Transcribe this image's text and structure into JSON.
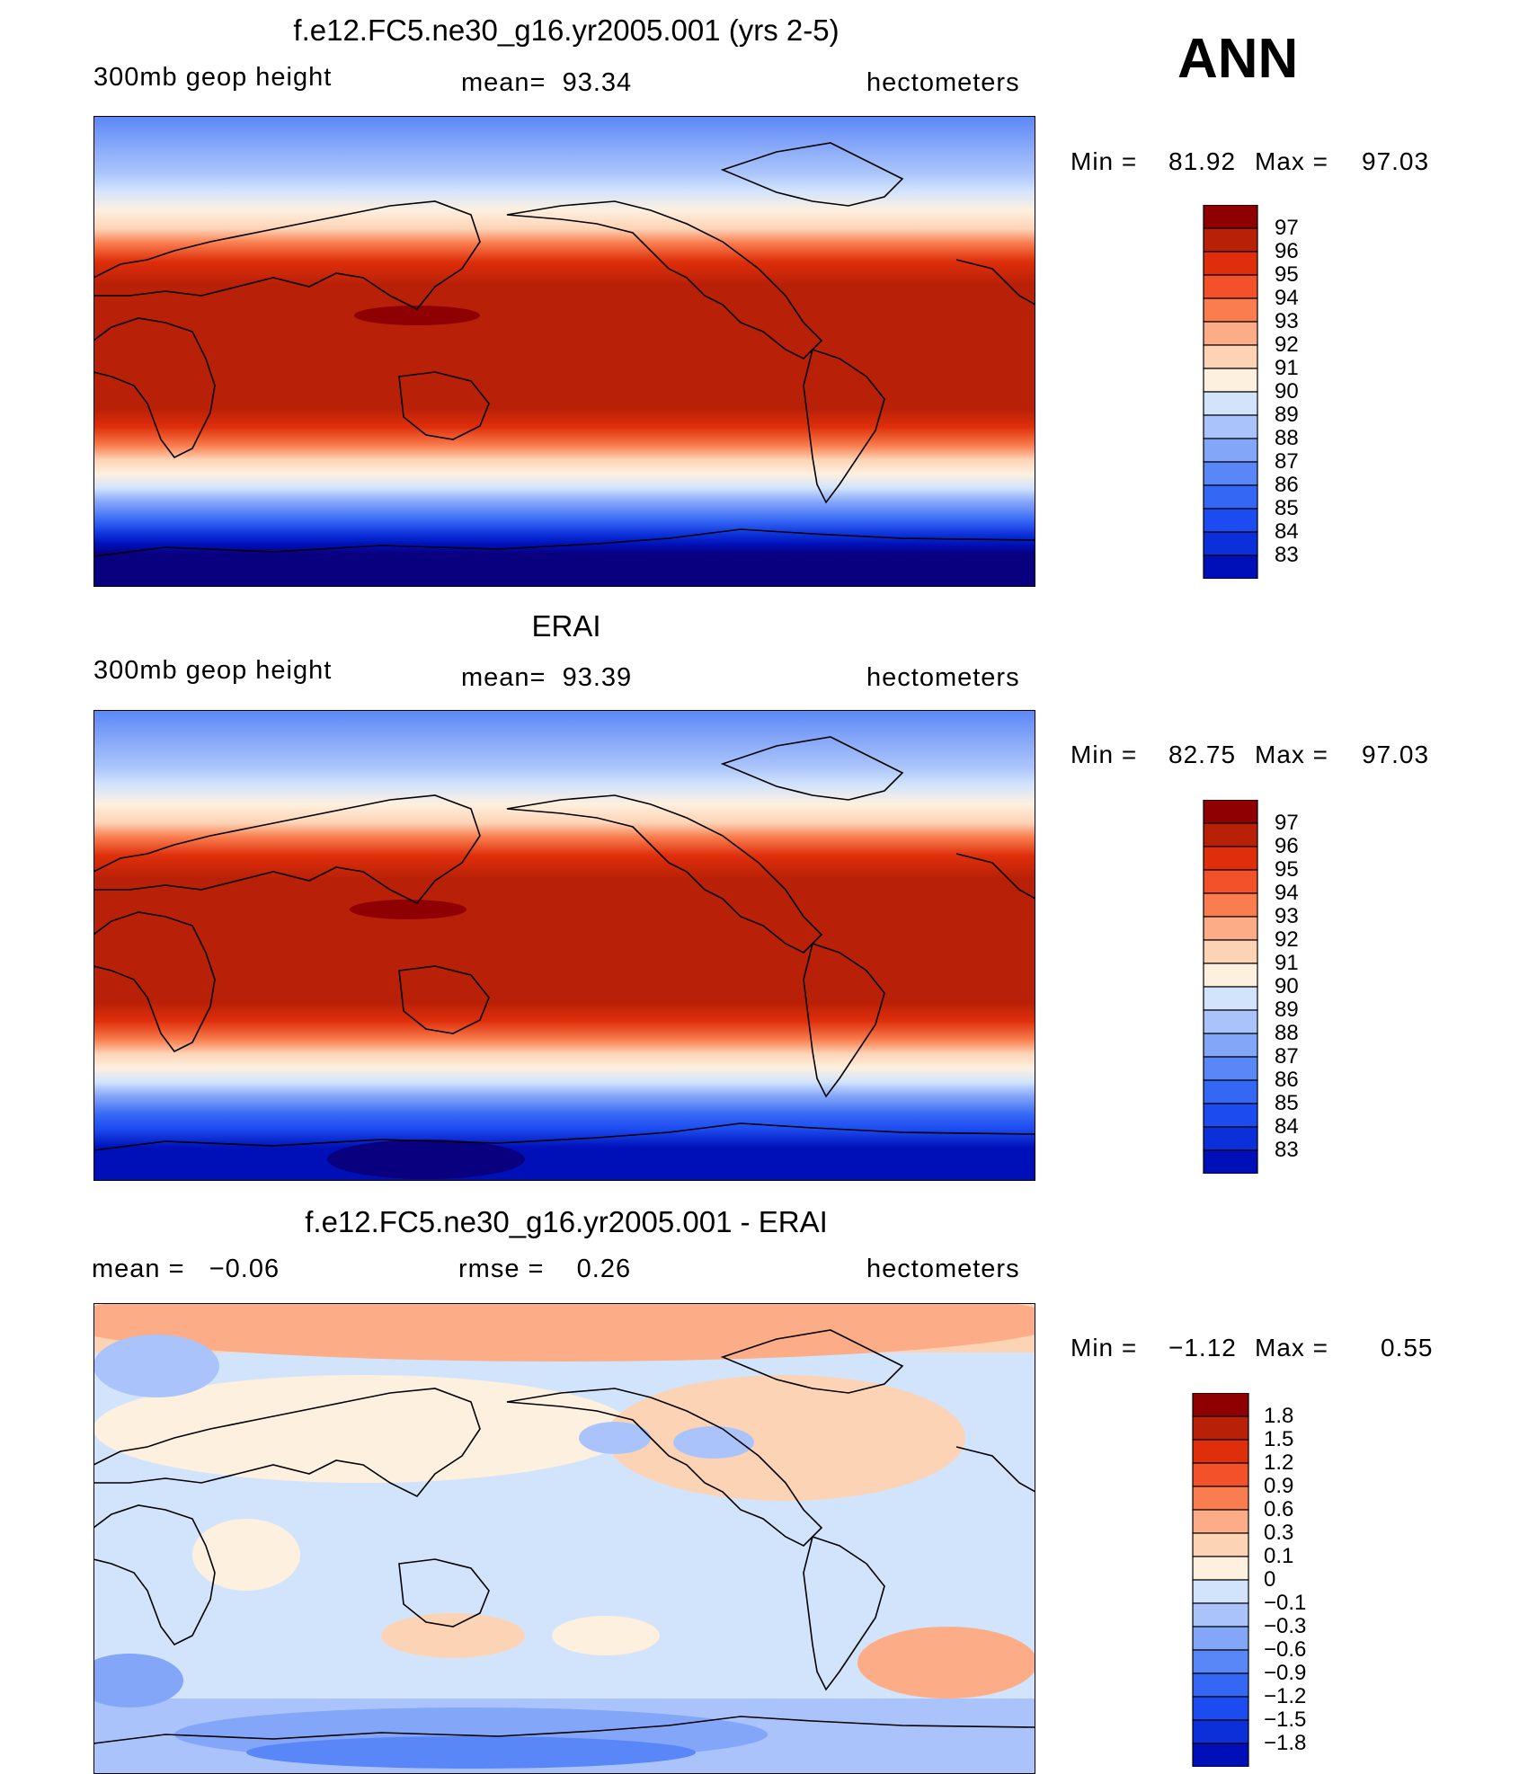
{
  "season": "ANN",
  "palette_abs": [
    "#08007f",
    "#0010b8",
    "#0b2fd8",
    "#1c4bf0",
    "#3567f5",
    "#5a87f7",
    "#84a6f9",
    "#aac4fb",
    "#d2e4fc",
    "#fdf0df",
    "#fdd3b6",
    "#fcad87",
    "#f97d4e",
    "#f2512a",
    "#de2e0b",
    "#b82007",
    "#8e0001"
  ],
  "palette_diff": [
    "#08007f",
    "#0010b8",
    "#0b2fd8",
    "#1c4bf0",
    "#3567f5",
    "#5a87f7",
    "#84a6f9",
    "#aac4fb",
    "#d2e4fc",
    "#fdf0df",
    "#fdd3b6",
    "#fcad87",
    "#f97d4e",
    "#f2512a",
    "#de2e0b",
    "#b82007",
    "#8e0001"
  ],
  "panels": [
    {
      "title": "f.e12.FC5.ne30_g16.yr2005.001 (yrs 2-5)",
      "left_label": "300mb geop height",
      "center_label": "mean=  93.34",
      "right_label": "hectometers",
      "min_label": "Min =",
      "min_value": "81.92",
      "max_label": "Max =",
      "max_value": "97.03",
      "colorbar_labels": [
        "97",
        "96",
        "95",
        "94",
        "93",
        "92",
        "91",
        "90",
        "89",
        "88",
        "87",
        "86",
        "85",
        "84",
        "83"
      ]
    },
    {
      "title": "ERAI",
      "left_label": "300mb geop height",
      "center_label": "mean=  93.39",
      "right_label": "hectometers",
      "min_label": "Min =",
      "min_value": "82.75",
      "max_label": "Max =",
      "max_value": "97.03",
      "colorbar_labels": [
        "97",
        "96",
        "95",
        "94",
        "93",
        "92",
        "91",
        "90",
        "89",
        "88",
        "87",
        "86",
        "85",
        "84",
        "83"
      ]
    },
    {
      "title": "f.e12.FC5.ne30_g16.yr2005.001 - ERAI",
      "left_label": "mean =   −0.06",
      "center_label": "rmse =    0.26",
      "right_label": "hectometers",
      "min_label": "Min =",
      "min_value": "−1.12",
      "max_label": "Max =",
      "max_value": "0.55",
      "colorbar_labels": [
        "1.8",
        "1.5",
        "1.2",
        "0.9",
        "0.6",
        "0.3",
        "0.1",
        "0",
        "−0.1",
        "−0.3",
        "−0.6",
        "−0.9",
        "−1.2",
        "−1.5",
        "−1.8"
      ]
    }
  ]
}
